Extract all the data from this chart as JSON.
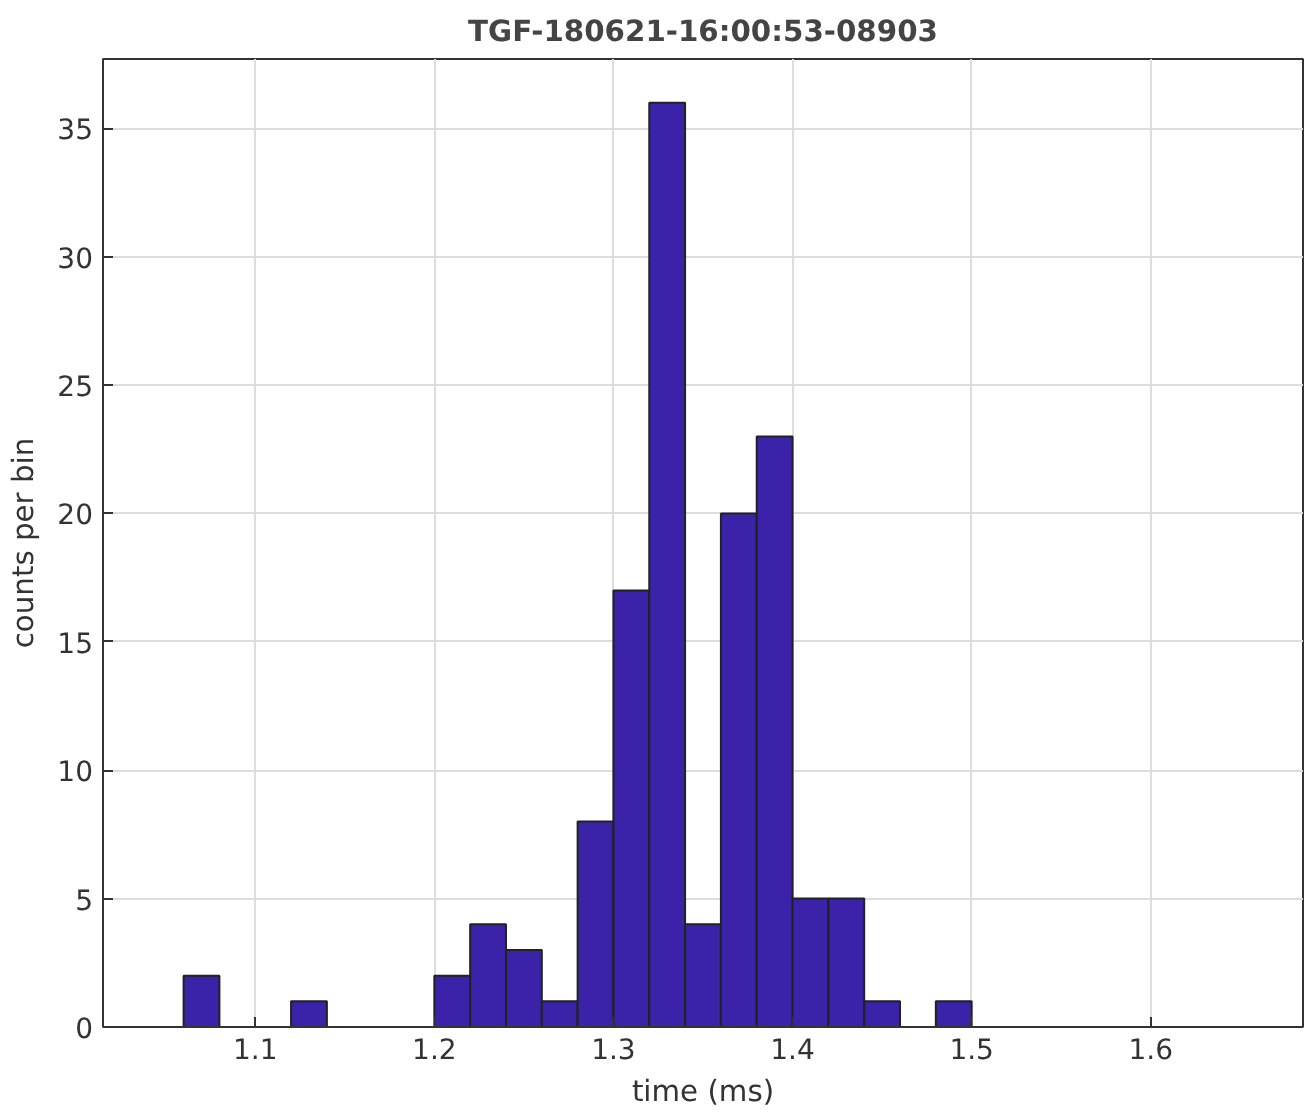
{
  "chart_data": {
    "type": "histogram",
    "title": "TGF-180621-16:00:53-08903",
    "xlabel": "time (ms)",
    "ylabel": "counts per bin",
    "bins": [
      1.06,
      1.08,
      1.1,
      1.12,
      1.14,
      1.16,
      1.18,
      1.2,
      1.22,
      1.24,
      1.26,
      1.28,
      1.3,
      1.32,
      1.34,
      1.36,
      1.38,
      1.4,
      1.42,
      1.44,
      1.46,
      1.48,
      1.5
    ],
    "values": [
      2,
      0,
      0,
      1,
      0,
      0,
      0,
      2,
      4,
      3,
      1,
      8,
      17,
      36,
      4,
      20,
      23,
      5,
      5,
      1,
      0,
      1
    ],
    "color": "#3b22a8",
    "xlim": [
      1.015,
      1.685
    ],
    "ylim": [
      0,
      37.7
    ],
    "xticks": [
      1.1,
      1.2,
      1.3,
      1.4,
      1.5,
      1.6
    ],
    "yticks": [
      0,
      5,
      10,
      15,
      20,
      25,
      30,
      35
    ],
    "grid": true
  }
}
